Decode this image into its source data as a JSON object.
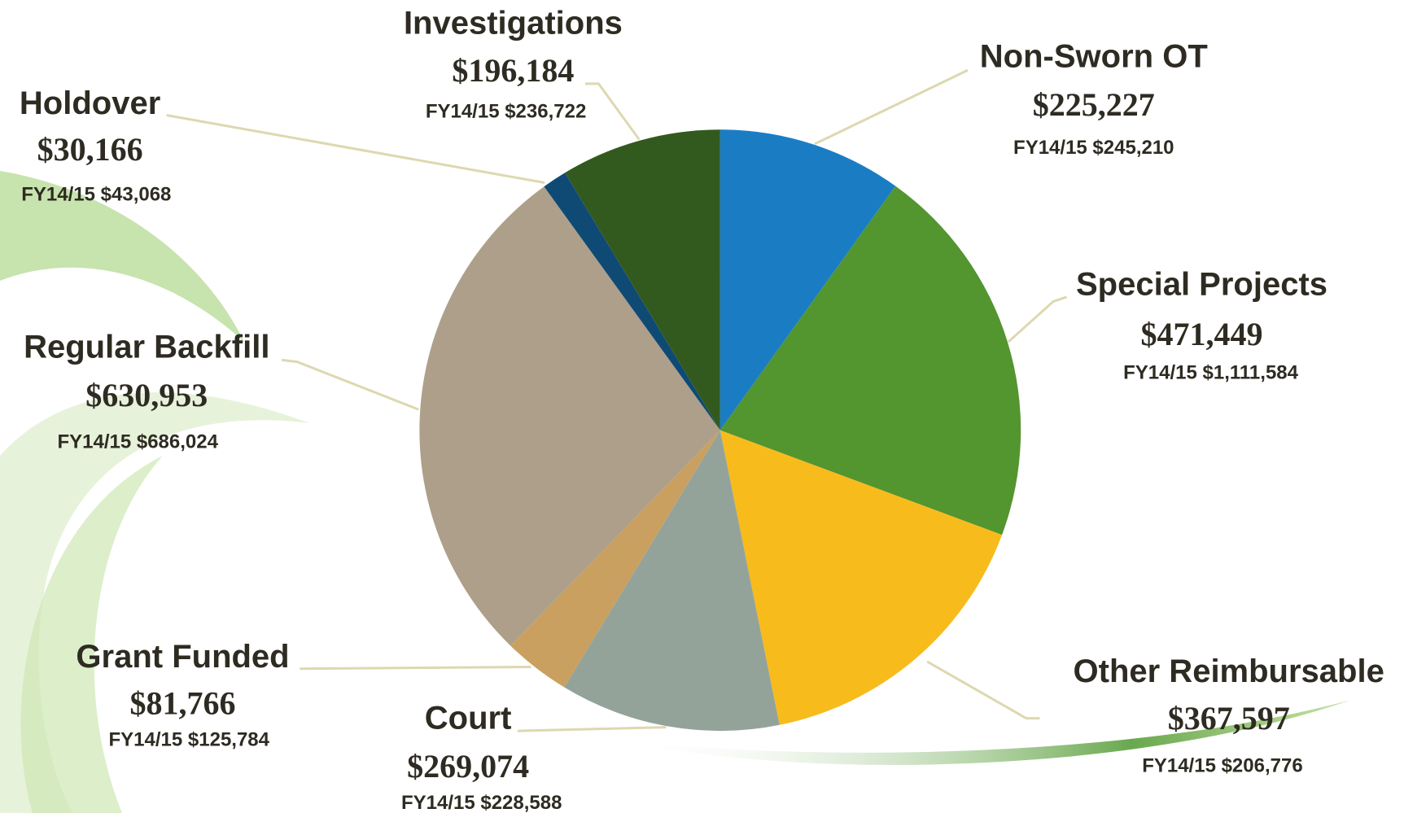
{
  "chart_data": {
    "type": "pie",
    "categories": [
      "Non-Sworn OT",
      "Special Projects",
      "Other Reimbursable",
      "Court",
      "Grant Funded",
      "Regular Backfill",
      "Holdover",
      "Investigations"
    ],
    "values": [
      225227,
      471449,
      367597,
      269074,
      81766,
      630953,
      30166,
      196184
    ],
    "value_labels": [
      "$225,227",
      "$471,449",
      "$367,597",
      "$269,074",
      "$81,766",
      "$630,953",
      "$30,166",
      "$196,184"
    ],
    "prior_year_labels": [
      "FY14/15 $245,210",
      "FY14/15 $1,111,584",
      "FY14/15 $206,776",
      "FY14/15 $228,588",
      "FY14/15 $125,784",
      "FY14/15 $686,024",
      "FY14/15 $43,068",
      "FY14/15 $236,722"
    ],
    "colors": [
      "#1a7dc4",
      "#53952f",
      "#f8bb1c",
      "#94a39a",
      "#c9a060",
      "#ae9f8a",
      "#0f4a75",
      "#335a1e"
    ]
  }
}
